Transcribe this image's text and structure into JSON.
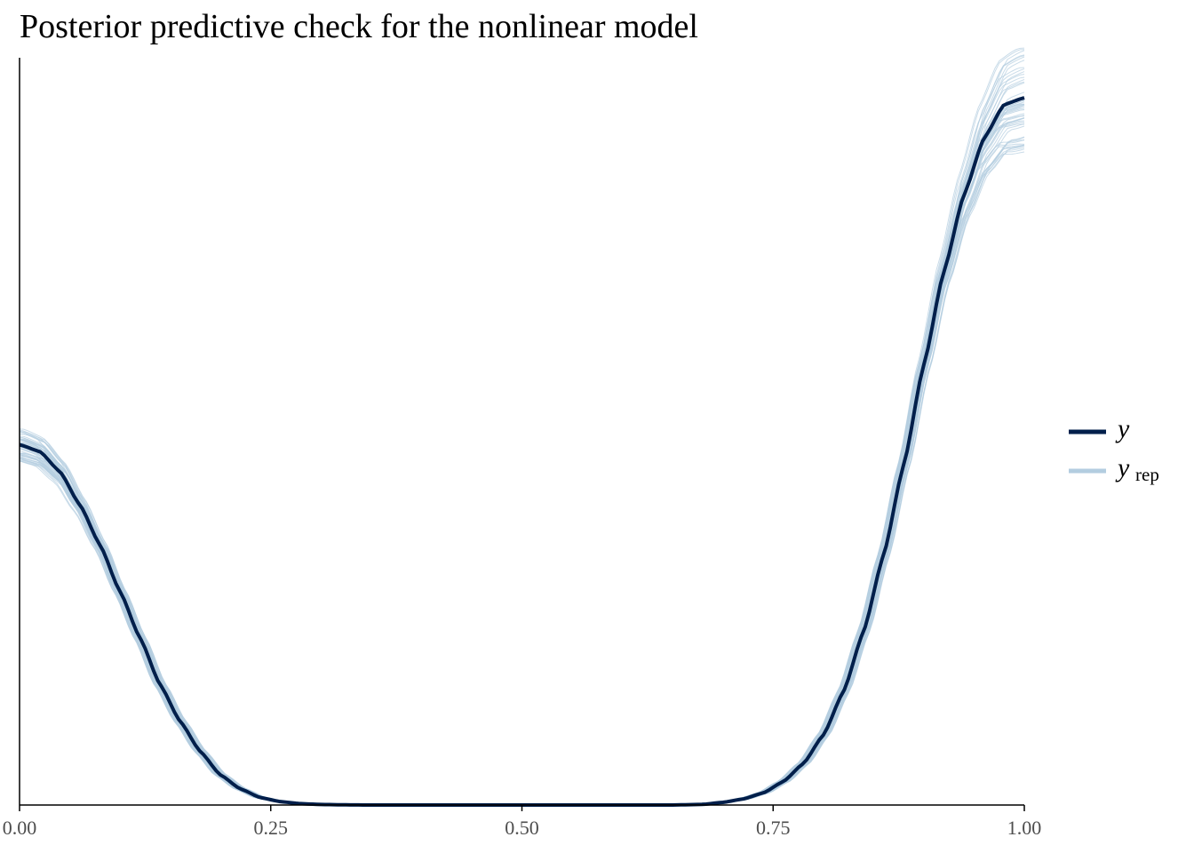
{
  "chart_data": {
    "type": "line",
    "title": "Posterior predictive check for the nonlinear model",
    "xlabel": "",
    "ylabel": "",
    "xlim": [
      0,
      1
    ],
    "ylim": [
      0,
      1.12
    ],
    "x_ticks": [
      "0.00",
      "0.25",
      "0.50",
      "0.75",
      "1.00"
    ],
    "y_axis_ticks_shown": false,
    "grid": false,
    "legend_position": "right",
    "colors": {
      "y": "#011f4b",
      "y_rep": "#b3cde0"
    },
    "series": [
      {
        "name": "y",
        "role": "observed",
        "x": [
          0.0,
          0.02,
          0.04,
          0.06,
          0.08,
          0.1,
          0.12,
          0.14,
          0.16,
          0.18,
          0.2,
          0.22,
          0.24,
          0.26,
          0.28,
          0.3,
          0.32,
          0.35,
          0.4,
          0.45,
          0.5,
          0.55,
          0.6,
          0.65,
          0.68,
          0.7,
          0.72,
          0.74,
          0.76,
          0.78,
          0.8,
          0.82,
          0.84,
          0.86,
          0.88,
          0.9,
          0.92,
          0.94,
          0.96,
          0.98,
          1.0
        ],
        "values": [
          0.54,
          0.53,
          0.5,
          0.45,
          0.39,
          0.32,
          0.25,
          0.18,
          0.125,
          0.08,
          0.045,
          0.024,
          0.011,
          0.005,
          0.002,
          0.0008,
          0.0003,
          0.0,
          0.0,
          0.0,
          0.0,
          0.0,
          0.0,
          0.0,
          0.001,
          0.004,
          0.009,
          0.018,
          0.035,
          0.062,
          0.105,
          0.17,
          0.26,
          0.375,
          0.51,
          0.66,
          0.8,
          0.915,
          1.0,
          1.05,
          1.06
        ]
      }
    ],
    "y_rep_draws_count": 50,
    "y_rep_label": "y_rep"
  },
  "legend": {
    "items": [
      {
        "main": "y",
        "sub": ""
      },
      {
        "main": "y",
        "sub": "rep"
      }
    ]
  }
}
